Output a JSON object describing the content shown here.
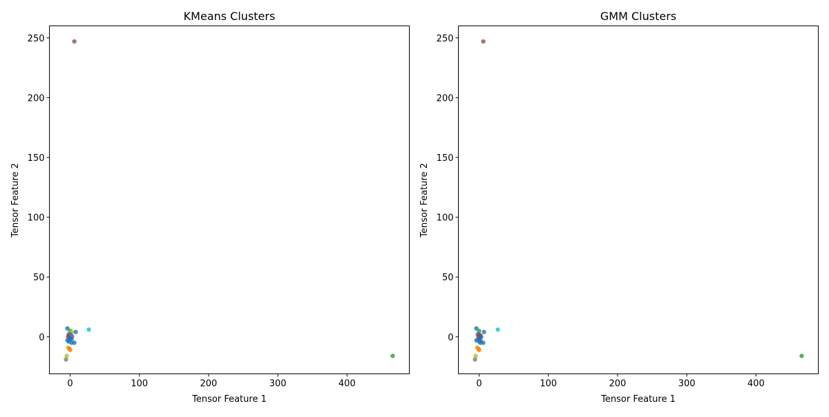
{
  "chart_data": [
    {
      "type": "scatter",
      "title": "KMeans Clusters",
      "xlabel": "Tensor Feature 1",
      "ylabel": "Tensor Feature 2",
      "xlim": [
        -30,
        490
      ],
      "ylim": [
        -31,
        260
      ],
      "xticks": [
        0,
        100,
        200,
        300,
        400
      ],
      "yticks": [
        0,
        50,
        100,
        150,
        200,
        250
      ],
      "grid": false,
      "points": [
        {
          "x": 6,
          "y": 247,
          "color": "#8c564b"
        },
        {
          "x": 27,
          "y": 6,
          "color": "#17becf"
        },
        {
          "x": 466,
          "y": -16,
          "color": "#2ca02c"
        },
        {
          "x": -4,
          "y": 7,
          "color": "#1f77b4"
        },
        {
          "x": 0,
          "y": 5,
          "color": "#2ca02c"
        },
        {
          "x": 2,
          "y": 4,
          "color": "#bcbd22"
        },
        {
          "x": 8,
          "y": 4,
          "color": "#1f77b4"
        },
        {
          "x": -2,
          "y": 2,
          "color": "#1f77b4"
        },
        {
          "x": 0,
          "y": 2,
          "color": "#2ca02c"
        },
        {
          "x": 2,
          "y": 1,
          "color": "#1f77b4"
        },
        {
          "x": -1,
          "y": 1,
          "color": "#1f77b4"
        },
        {
          "x": 1,
          "y": 0,
          "color": "#9467bd"
        },
        {
          "x": 3,
          "y": 0,
          "color": "#9467bd"
        },
        {
          "x": -3,
          "y": 0,
          "color": "#d62728"
        },
        {
          "x": -1,
          "y": -1,
          "color": "#1f77b4"
        },
        {
          "x": 0,
          "y": -2,
          "color": "#1f77b4"
        },
        {
          "x": 2,
          "y": -2,
          "color": "#1f77b4"
        },
        {
          "x": -4,
          "y": -3,
          "color": "#1f77b4"
        },
        {
          "x": -2,
          "y": -4,
          "color": "#1f77b4"
        },
        {
          "x": 2,
          "y": -5,
          "color": "#1f77b4"
        },
        {
          "x": 6,
          "y": -5,
          "color": "#1f77b4"
        },
        {
          "x": -3,
          "y": -9,
          "color": "#bcbd22"
        },
        {
          "x": -1,
          "y": -10,
          "color": "#ff7f0e"
        },
        {
          "x": 0,
          "y": -11,
          "color": "#ff7f0e"
        },
        {
          "x": -5,
          "y": -16,
          "color": "#bcbd22"
        },
        {
          "x": -6,
          "y": -19,
          "color": "#7f7f7f"
        }
      ]
    },
    {
      "type": "scatter",
      "title": "GMM Clusters",
      "xlabel": "Tensor Feature 1",
      "ylabel": "Tensor Feature 2",
      "xlim": [
        -30,
        490
      ],
      "ylim": [
        -31,
        260
      ],
      "xticks": [
        0,
        100,
        200,
        300,
        400
      ],
      "yticks": [
        0,
        50,
        100,
        150,
        200,
        250
      ],
      "grid": false,
      "points": [
        {
          "x": 6,
          "y": 247,
          "color": "#8c564b"
        },
        {
          "x": 27,
          "y": 6,
          "color": "#17becf"
        },
        {
          "x": 466,
          "y": -16,
          "color": "#2ca02c"
        },
        {
          "x": -4,
          "y": 7,
          "color": "#1f77b4"
        },
        {
          "x": 0,
          "y": 5,
          "color": "#2ca02c"
        },
        {
          "x": 7,
          "y": 4,
          "color": "#1f77b4"
        },
        {
          "x": -2,
          "y": 2,
          "color": "#1f77b4"
        },
        {
          "x": 0,
          "y": 2,
          "color": "#1f77b4"
        },
        {
          "x": 2,
          "y": 1,
          "color": "#d62728"
        },
        {
          "x": -1,
          "y": 0,
          "color": "#d62728"
        },
        {
          "x": 1,
          "y": -1,
          "color": "#d62728"
        },
        {
          "x": 3,
          "y": 0,
          "color": "#1f77b4"
        },
        {
          "x": -1,
          "y": -2,
          "color": "#1f77b4"
        },
        {
          "x": 2,
          "y": -3,
          "color": "#1f77b4"
        },
        {
          "x": -4,
          "y": -3,
          "color": "#1f77b4"
        },
        {
          "x": 0,
          "y": -4,
          "color": "#1f77b4"
        },
        {
          "x": 2,
          "y": -5,
          "color": "#1f77b4"
        },
        {
          "x": 6,
          "y": -5,
          "color": "#1f77b4"
        },
        {
          "x": -3,
          "y": -9,
          "color": "#bcbd22"
        },
        {
          "x": -1,
          "y": -10,
          "color": "#ff7f0e"
        },
        {
          "x": 0,
          "y": -11,
          "color": "#ff7f0e"
        },
        {
          "x": -5,
          "y": -16,
          "color": "#bcbd22"
        },
        {
          "x": -6,
          "y": -19,
          "color": "#7f7f7f"
        }
      ]
    }
  ]
}
